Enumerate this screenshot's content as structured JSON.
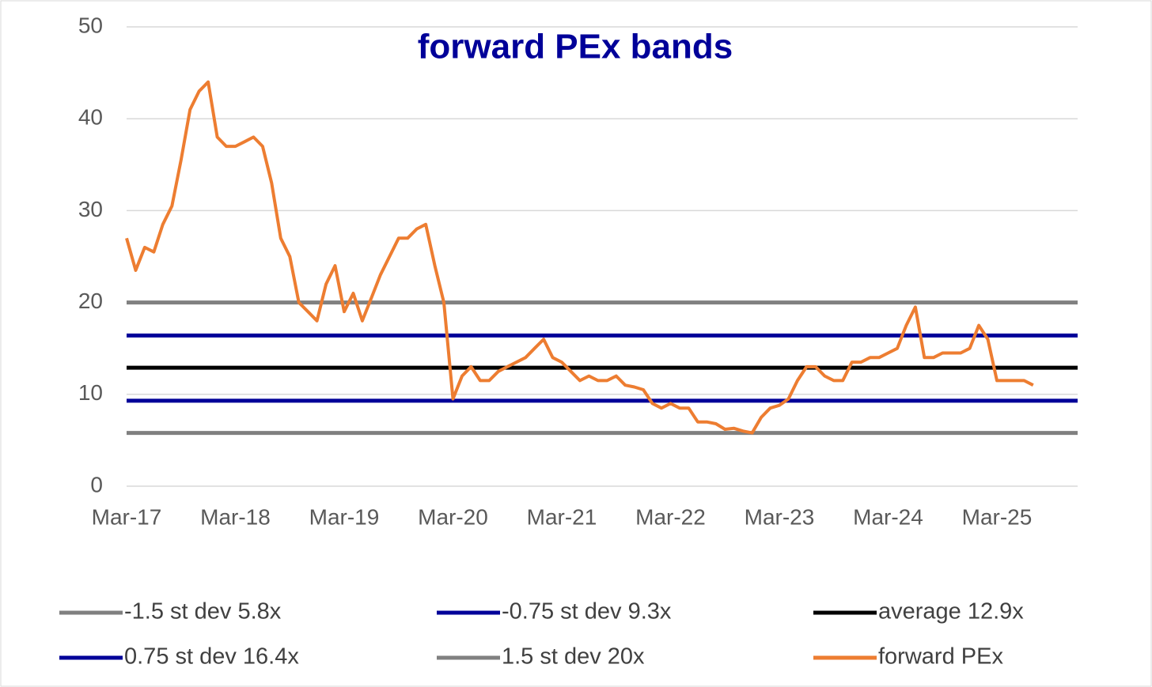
{
  "chart_data": {
    "type": "line",
    "title": "forward PEx bands",
    "categories": [
      "Mar-17",
      null,
      null,
      null,
      null,
      null,
      null,
      null,
      null,
      null,
      null,
      null,
      "Mar-18",
      null,
      null,
      null,
      null,
      null,
      null,
      null,
      null,
      null,
      null,
      null,
      "Mar-19",
      null,
      null,
      null,
      null,
      null,
      null,
      null,
      null,
      null,
      null,
      null,
      "Mar-20",
      null,
      null,
      null,
      null,
      null,
      null,
      null,
      null,
      null,
      null,
      null,
      "Mar-21",
      null,
      null,
      null,
      null,
      null,
      null,
      null,
      null,
      null,
      null,
      null,
      "Mar-22",
      null,
      null,
      null,
      null,
      null,
      null,
      null,
      null,
      null,
      null,
      null,
      "Mar-23",
      null,
      null,
      null,
      null,
      null,
      null,
      null,
      null,
      null,
      null,
      null,
      "Mar-24",
      null,
      null,
      null,
      null,
      null,
      null,
      null,
      null,
      null,
      null,
      null,
      "Mar-25",
      null,
      null,
      null,
      null
    ],
    "series": [
      {
        "name": "-1.5 st dev 5.8x",
        "color": "#808080",
        "value": 5.8
      },
      {
        "name": "-0.75 st dev 9.3x",
        "color": "#000099",
        "value": 9.3
      },
      {
        "name": "average 12.9x",
        "color": "#000000",
        "value": 12.9
      },
      {
        "name": "0.75 st dev 16.4x",
        "color": "#000099",
        "value": 16.4
      },
      {
        "name": "1.5 st dev 20x",
        "color": "#808080",
        "value": 20
      },
      {
        "name": "forward PEx",
        "color": "#ed7d31",
        "values": [
          27,
          23.5,
          26,
          25.5,
          28.5,
          30.5,
          35.5,
          41,
          43,
          44,
          38,
          37,
          37,
          37.5,
          38,
          37,
          33,
          27,
          25,
          20,
          19,
          18,
          22,
          24,
          19,
          21,
          18,
          20.5,
          23,
          25,
          27,
          27,
          28,
          28.5,
          24,
          20,
          9.5,
          12,
          13,
          11.5,
          11.5,
          12.5,
          13,
          13.5,
          14,
          15,
          16,
          14,
          13.5,
          12.5,
          11.5,
          12,
          11.5,
          11.5,
          12,
          11,
          10.8,
          10.5,
          9,
          8.5,
          9,
          8.5,
          8.5,
          7,
          7,
          6.8,
          6.2,
          6.3,
          6,
          5.8,
          7.5,
          8.5,
          8.8,
          9.5,
          11.5,
          13,
          13,
          12,
          11.5,
          11.5,
          13.5,
          13.5,
          14,
          14,
          14.5,
          15,
          17.5,
          19.5,
          14,
          14,
          14.5,
          14.5,
          14.5,
          15,
          17.5,
          16,
          11.5,
          11.5,
          11.5,
          11.5,
          11
        ]
      }
    ],
    "ylim": [
      0,
      50
    ],
    "yticks": [
      0,
      10,
      20,
      30,
      40,
      50
    ],
    "grid": true
  }
}
